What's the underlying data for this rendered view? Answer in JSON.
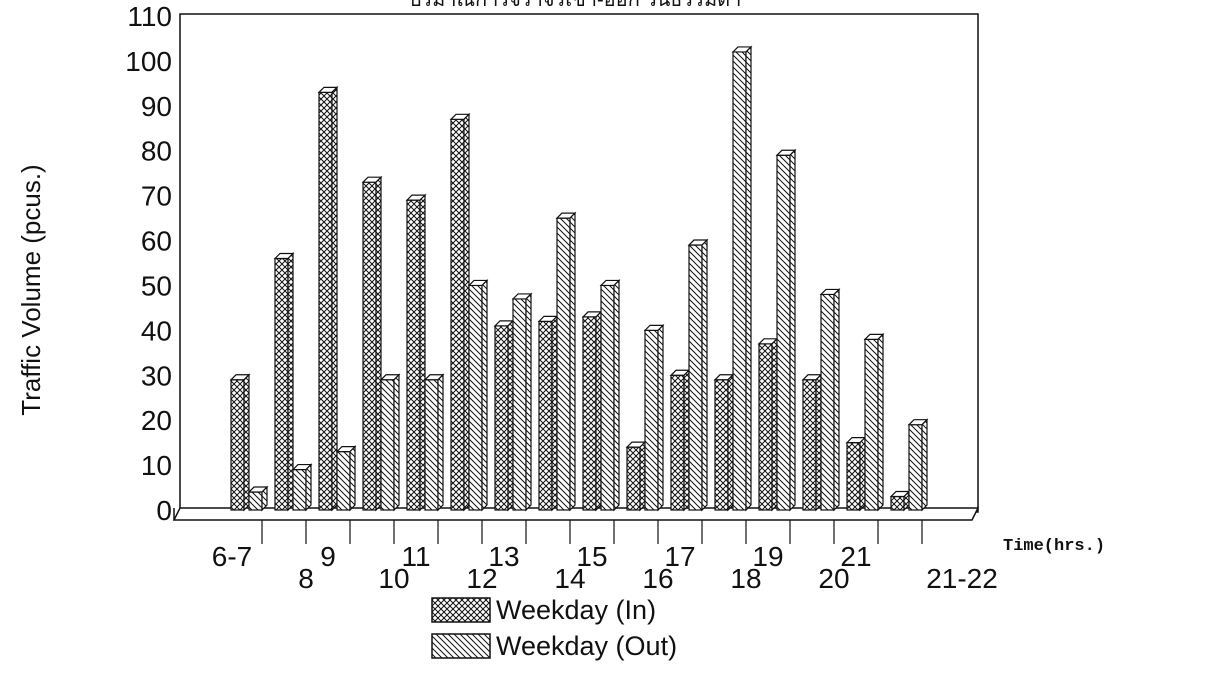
{
  "chart_data": {
    "type": "bar",
    "title": "ปริมาณการจราจรเข้า-ออก วันธรรมดา",
    "xlabel": "Time(hrs.)",
    "ylabel": "Traffic Volume (pcus.)",
    "ylim": [
      0,
      110
    ],
    "yticks": [
      0,
      10,
      20,
      30,
      40,
      50,
      60,
      70,
      80,
      90,
      100,
      110
    ],
    "categories": [
      "6-7",
      "8",
      "9",
      "10",
      "11",
      "12",
      "13",
      "14",
      "15",
      "16",
      "17",
      "18",
      "19",
      "20",
      "21",
      "21-22"
    ],
    "series": [
      {
        "name": "Weekday (In)",
        "pattern": "crosshatch",
        "values": [
          29,
          56,
          93,
          73,
          69,
          87,
          41,
          42,
          43,
          14,
          30,
          29,
          37,
          29,
          15,
          3
        ]
      },
      {
        "name": "Weekday (Out)",
        "pattern": "diagonal",
        "values": [
          4,
          9,
          13,
          29,
          29,
          50,
          47,
          65,
          50,
          40,
          59,
          102,
          79,
          48,
          38,
          19
        ]
      }
    ],
    "grid": false,
    "legend_position": "bottom",
    "colors": {
      "ink": "#111111",
      "background": "#ffffff"
    }
  }
}
